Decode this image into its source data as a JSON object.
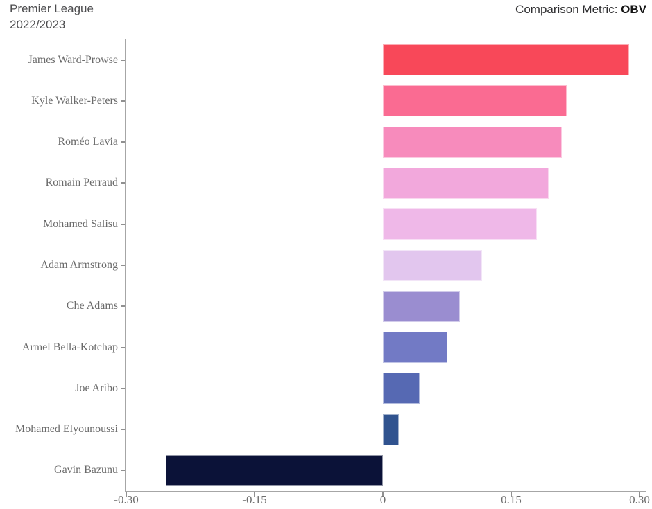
{
  "header": {
    "title_line1": "Premier League",
    "title_line2": "2022/2023",
    "metric_label": "Comparison Metric: ",
    "metric_value": "OBV"
  },
  "chart_data": {
    "type": "bar",
    "orientation": "horizontal",
    "title": "Premier League 2022/2023",
    "comparison_metric": "OBV",
    "categories": [
      "James Ward-Prowse",
      "Kyle Walker-Peters",
      "Roméo Lavia",
      "Romain Perraud",
      "Mohamed Salisu",
      "Adam Armstrong",
      "Che Adams",
      "Armel Bella-Kotchap",
      "Joe Aribo",
      "Mohamed Elyounoussi",
      "Gavin Bazunu"
    ],
    "values": [
      0.288,
      0.215,
      0.209,
      0.194,
      0.18,
      0.116,
      0.09,
      0.075,
      0.043,
      0.019,
      -0.254
    ],
    "bar_colors": [
      "#f84859",
      "#fa6b92",
      "#f78bbc",
      "#f2a8dc",
      "#efb8e8",
      "#e2c6ee",
      "#9a8dd0",
      "#727ac5",
      "#5669b3",
      "#30538f",
      "#0b1238"
    ],
    "xlim": [
      -0.3,
      0.3
    ],
    "x_ticks": [
      "-0.30",
      "-0.15",
      "0",
      "0.15",
      "0.30"
    ],
    "x_tick_values": [
      -0.3,
      -0.15,
      0,
      0.15,
      0.3
    ],
    "xlabel": "",
    "ylabel": "",
    "grid": false,
    "legend": "none",
    "axis_color": "#a6a6a6",
    "label_color": "#6a6a6a"
  }
}
